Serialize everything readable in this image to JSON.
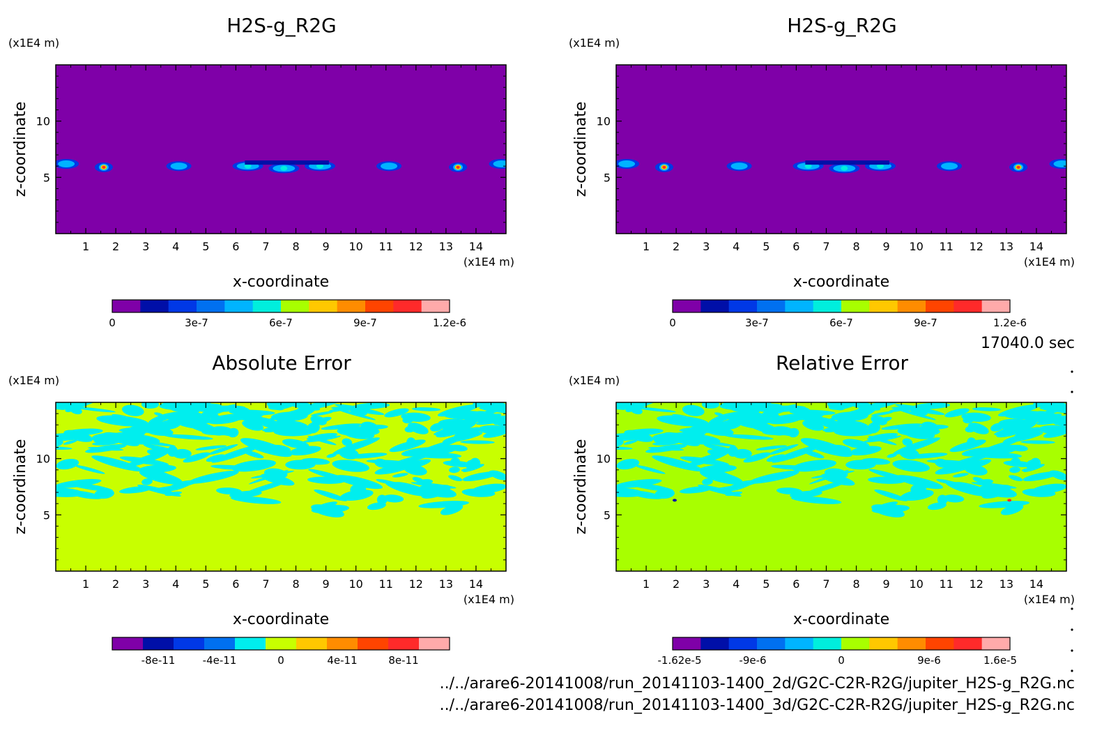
{
  "time_label": "17040.0 sec",
  "file_paths": [
    "../../arare6-20141008/run_20141103-1400_2d/G2C-C2R-R2G/jupiter_H2S-g_R2G.nc",
    "../../arare6-20141008/run_20141103-1400_3d/G2C-C2R-R2G/jupiter_H2S-g_R2G.nc"
  ],
  "colors": {
    "background_tl": "#7f00a8",
    "background_tr": "#7f00a8",
    "background_bl": "#c8ff00",
    "background_br": "#a8ff00",
    "pattern": "#00eeee"
  },
  "chart_data": [
    {
      "type": "heatmap",
      "title": "H2S-g_R2G",
      "xlabel": "x-coordinate",
      "ylabel": "z-coordinate",
      "x_unit": "(x1E4 m)",
      "y_unit": "(x1E4 m)",
      "xlim": [
        0,
        15
      ],
      "ylim": [
        0,
        15
      ],
      "xticks": [
        "1",
        "2",
        "3",
        "4",
        "5",
        "6",
        "7",
        "8",
        "9",
        "10",
        "11",
        "12",
        "13",
        "14"
      ],
      "yticks": [
        "5",
        "10"
      ],
      "colorbar": {
        "colors": [
          "#7f00a8",
          "#000fa8",
          "#0038e6",
          "#0070f0",
          "#00b4ff",
          "#00eedd",
          "#a8ff00",
          "#ffc800",
          "#ff8c00",
          "#ff4400",
          "#ff2a2a",
          "#ffaaaa"
        ],
        "tick_labels": [
          "0",
          "3e-7",
          "6e-7",
          "9e-7",
          "1.2e-6"
        ]
      },
      "features": [
        {
          "x": 0.35,
          "z": 6.2,
          "value": 3e-07
        },
        {
          "x": 1.6,
          "z": 5.9,
          "value": 1.2e-06
        },
        {
          "x": 4.1,
          "z": 6.0,
          "value": 3e-07
        },
        {
          "x": 6.4,
          "z": 6.0,
          "value": 5e-07
        },
        {
          "x": 7.6,
          "z": 5.8,
          "value": 6e-07
        },
        {
          "x": 8.8,
          "z": 6.0,
          "value": 5e-07
        },
        {
          "x": 11.1,
          "z": 6.0,
          "value": 3e-07
        },
        {
          "x": 13.4,
          "z": 5.9,
          "value": 1.2e-06
        },
        {
          "x": 14.85,
          "z": 6.2,
          "value": 3e-07
        }
      ]
    },
    {
      "type": "heatmap",
      "title": "H2S-g_R2G",
      "xlabel": "x-coordinate",
      "ylabel": "z-coordinate",
      "x_unit": "(x1E4 m)",
      "y_unit": "(x1E4 m)",
      "xlim": [
        0,
        15
      ],
      "ylim": [
        0,
        15
      ],
      "xticks": [
        "1",
        "2",
        "3",
        "4",
        "5",
        "6",
        "7",
        "8",
        "9",
        "10",
        "11",
        "12",
        "13",
        "14"
      ],
      "yticks": [
        "5",
        "10"
      ],
      "colorbar": {
        "colors": [
          "#7f00a8",
          "#000fa8",
          "#0038e6",
          "#0070f0",
          "#00b4ff",
          "#00eedd",
          "#a8ff00",
          "#ffc800",
          "#ff8c00",
          "#ff4400",
          "#ff2a2a",
          "#ffaaaa"
        ],
        "tick_labels": [
          "0",
          "3e-7",
          "6e-7",
          "9e-7",
          "1.2e-6"
        ]
      },
      "features": [
        {
          "x": 0.35,
          "z": 6.2,
          "value": 3e-07
        },
        {
          "x": 1.6,
          "z": 5.9,
          "value": 1.2e-06
        },
        {
          "x": 4.1,
          "z": 6.0,
          "value": 3e-07
        },
        {
          "x": 6.4,
          "z": 6.0,
          "value": 5e-07
        },
        {
          "x": 7.6,
          "z": 5.8,
          "value": 6e-07
        },
        {
          "x": 8.8,
          "z": 6.0,
          "value": 5e-07
        },
        {
          "x": 11.1,
          "z": 6.0,
          "value": 3e-07
        },
        {
          "x": 13.4,
          "z": 5.9,
          "value": 1.2e-06
        },
        {
          "x": 14.85,
          "z": 6.2,
          "value": 3e-07
        }
      ]
    },
    {
      "type": "heatmap",
      "title": "Absolute Error",
      "xlabel": "x-coordinate",
      "ylabel": "z-coordinate",
      "x_unit": "(x1E4 m)",
      "y_unit": "(x1E4 m)",
      "xlim": [
        0,
        15
      ],
      "ylim": [
        0,
        15
      ],
      "xticks": [
        "1",
        "2",
        "3",
        "4",
        "5",
        "6",
        "7",
        "8",
        "9",
        "10",
        "11",
        "12",
        "13",
        "14"
      ],
      "yticks": [
        "5",
        "10"
      ],
      "colorbar": {
        "colors": [
          "#7f00a8",
          "#000fa8",
          "#0038e6",
          "#0070f0",
          "#00eeee",
          "#c8ff00",
          "#ffc800",
          "#ff8c00",
          "#ff4400",
          "#ff2a2a",
          "#ffaaaa"
        ],
        "tick_labels": [
          "-8e-11",
          "-4e-11",
          "0",
          "4e-11",
          "8e-11"
        ]
      }
    },
    {
      "type": "heatmap",
      "title": "Relative Error",
      "xlabel": "x-coordinate",
      "ylabel": "z-coordinate",
      "x_unit": "(x1E4 m)",
      "y_unit": "(x1E4 m)",
      "xlim": [
        0,
        15
      ],
      "ylim": [
        0,
        15
      ],
      "xticks": [
        "1",
        "2",
        "3",
        "4",
        "5",
        "6",
        "7",
        "8",
        "9",
        "10",
        "11",
        "12",
        "13",
        "14"
      ],
      "yticks": [
        "5",
        "10"
      ],
      "colorbar": {
        "colors": [
          "#7f00a8",
          "#000fa8",
          "#0038e6",
          "#0070f0",
          "#00b4ff",
          "#00eedd",
          "#a8ff00",
          "#ffc800",
          "#ff8c00",
          "#ff4400",
          "#ff2a2a",
          "#ffaaaa"
        ],
        "tick_labels": [
          "-1.62e-5",
          "-9e-6",
          "0",
          "9e-6",
          "1.6e-5"
        ]
      }
    }
  ]
}
